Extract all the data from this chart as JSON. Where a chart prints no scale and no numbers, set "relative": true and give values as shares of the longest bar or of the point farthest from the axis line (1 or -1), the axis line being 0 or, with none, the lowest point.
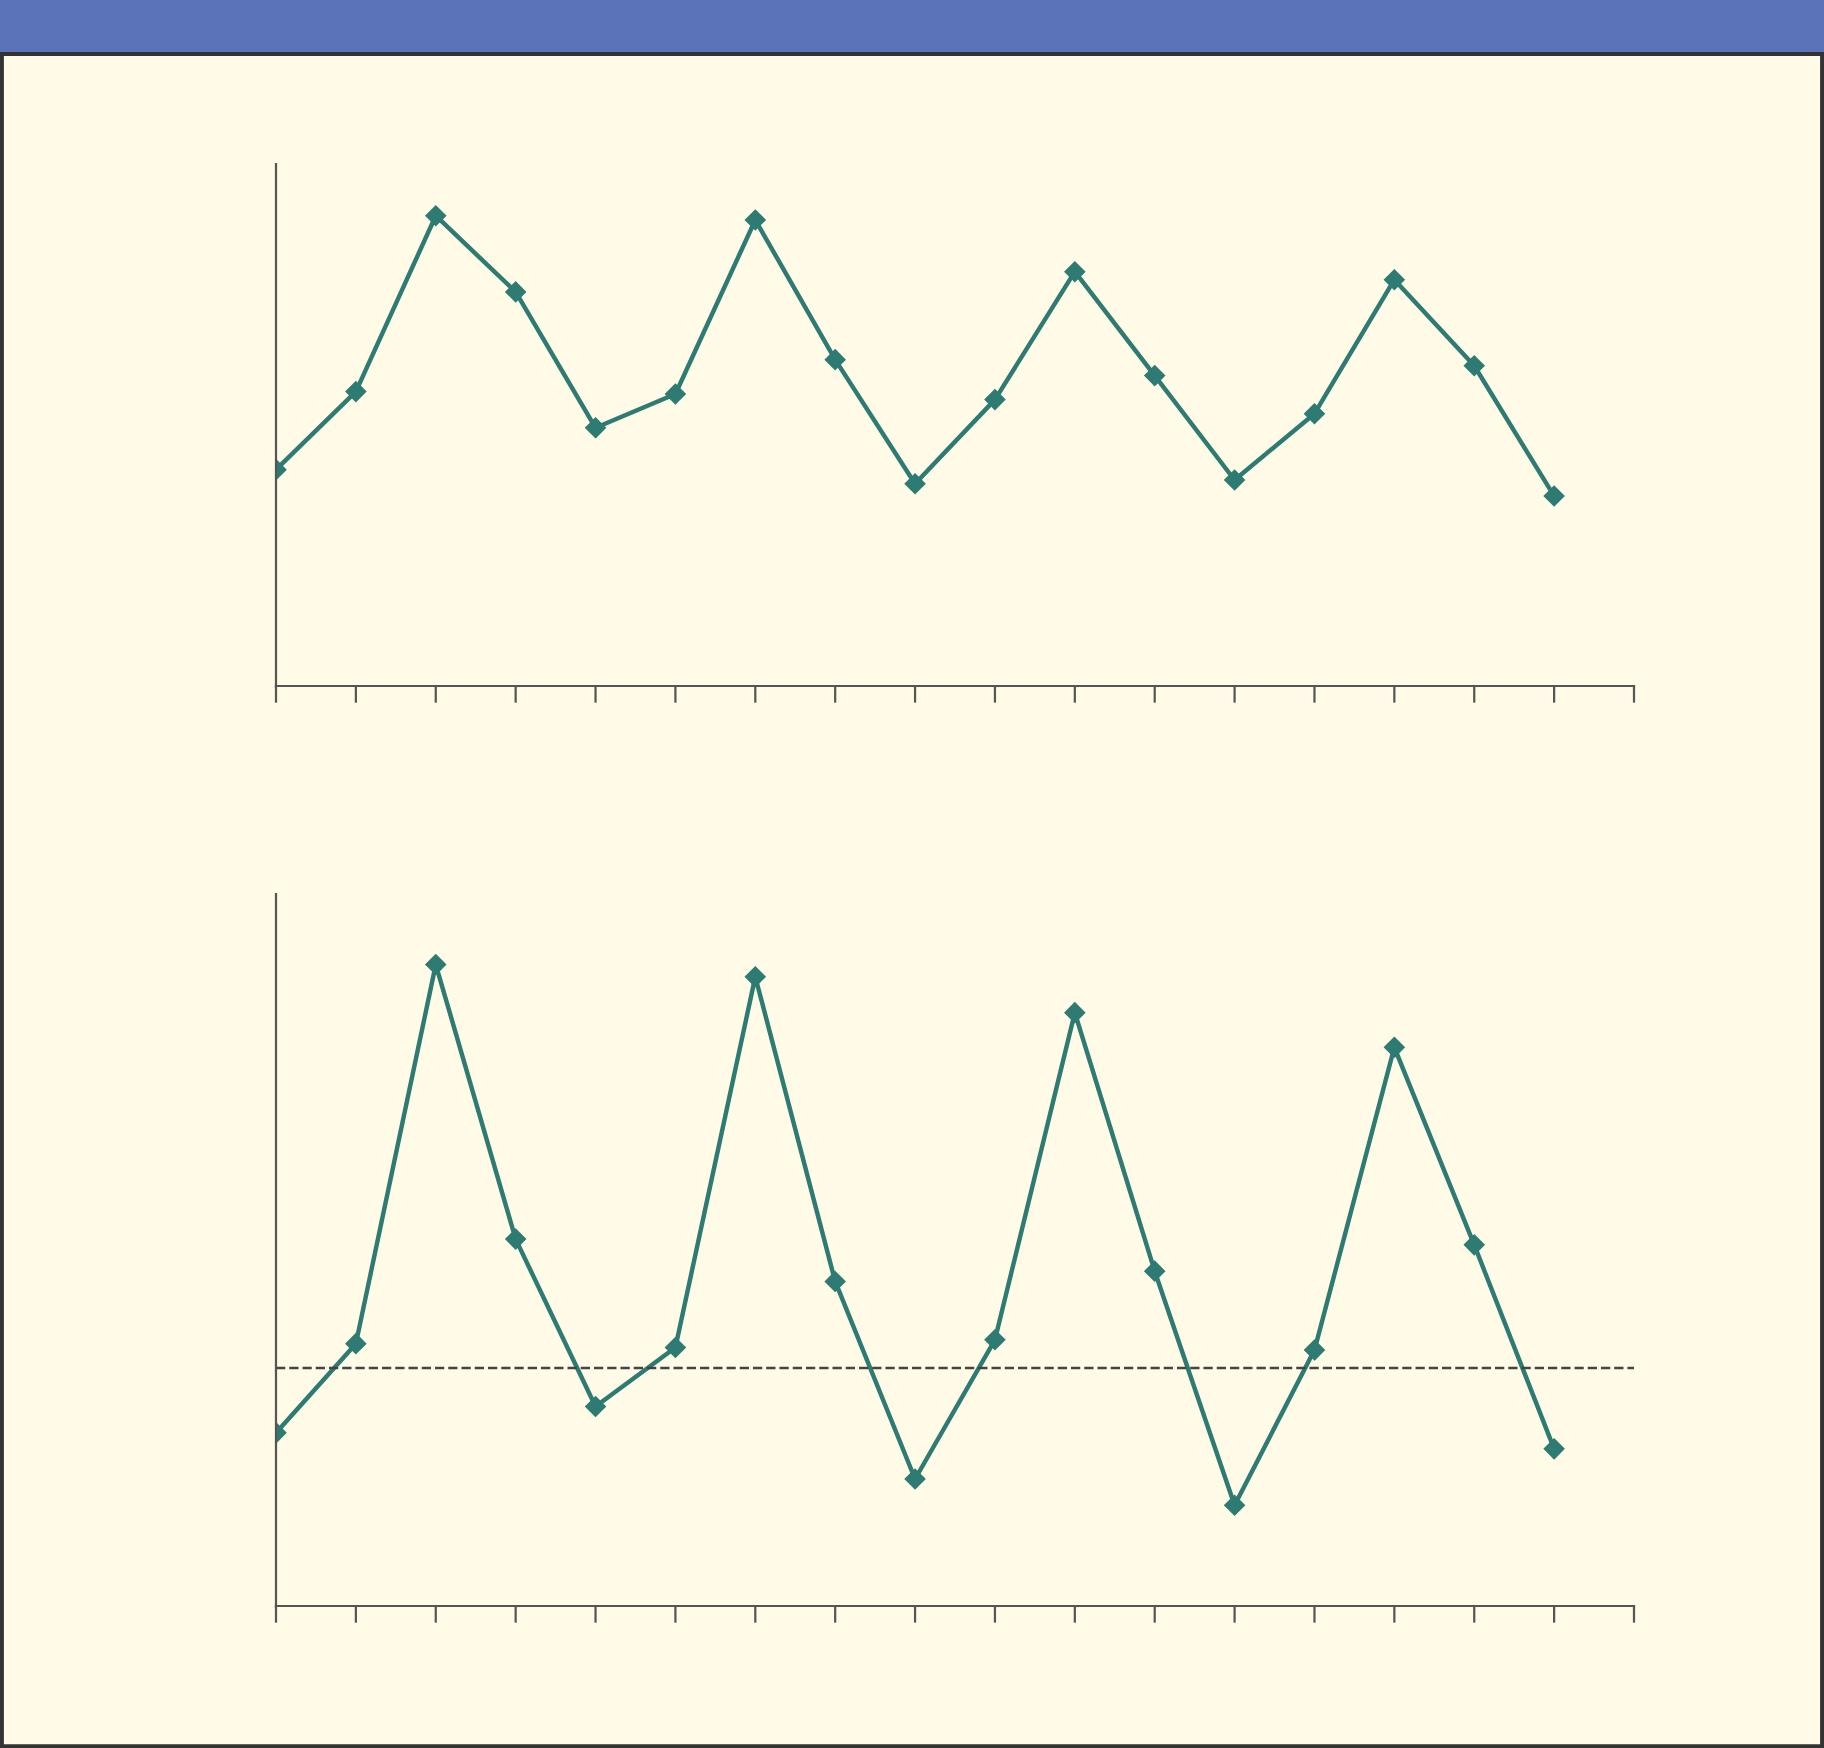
{
  "chart_data": [
    {
      "type": "line",
      "relative": true,
      "marker": "diamond",
      "line_style": "solid",
      "grid": false,
      "legend": false,
      "categories": [
        null,
        null,
        null,
        null,
        null,
        null,
        null,
        null,
        null,
        null,
        null,
        null,
        null,
        null,
        null,
        null,
        null,
        null
      ],
      "series": [
        {
          "color": "#2e7b73",
          "values": [
            0.46,
            0.626,
            1,
            0.838,
            0.549,
            0.621,
            0.991,
            0.694,
            0.43,
            0.609,
            0.881,
            0.66,
            0.438,
            0.579,
            0.864,
            0.681,
            0.404,
            null
          ]
        }
      ]
    },
    {
      "type": "line",
      "relative": true,
      "marker": "diamond",
      "line_style": "solid",
      "grid": false,
      "legend": false,
      "categories": [
        null,
        null,
        null,
        null,
        null,
        null,
        null,
        null,
        null,
        null,
        null,
        null,
        null,
        null,
        null,
        null,
        null,
        null
      ],
      "series": [
        {
          "color": "#2e7b73",
          "values": [
            0.27,
            0.409,
            1,
            0.572,
            0.311,
            0.403,
            0.981,
            0.506,
            0.198,
            0.415,
            0.925,
            0.522,
            0.157,
            0.399,
            0.871,
            0.563,
            0.245,
            null
          ]
        }
      ],
      "ref_lines": [
        {
          "axis": "y",
          "value": 0.371,
          "color": "#444444",
          "line_style": "dashed"
        }
      ]
    }
  ]
}
